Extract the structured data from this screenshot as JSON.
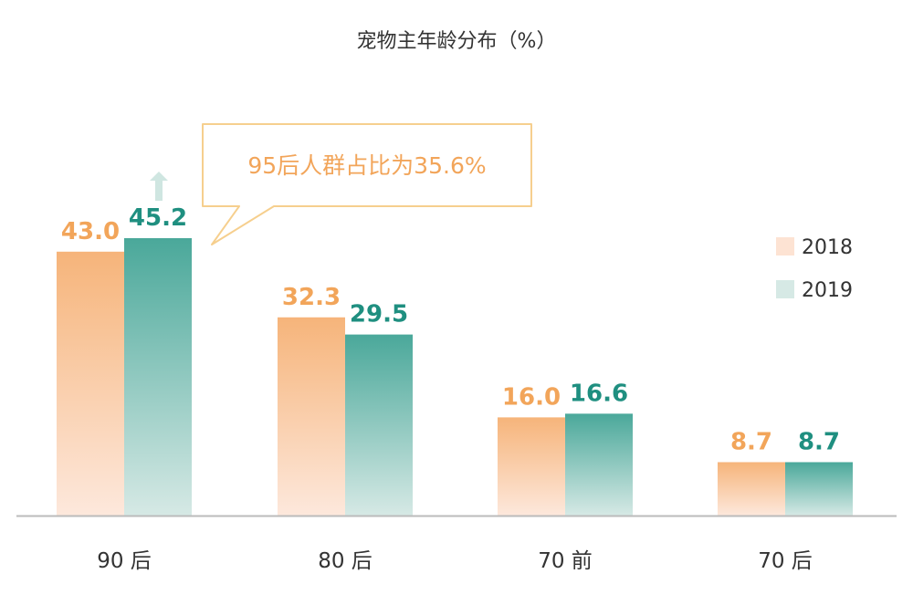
{
  "chart_data": {
    "type": "bar",
    "title": "宠物主年龄分布（%）",
    "categories": [
      "90 后",
      "80 后",
      "70 前",
      "70 后"
    ],
    "series": [
      {
        "name": "2018",
        "values": [
          43.0,
          32.3,
          16.0,
          8.7
        ]
      },
      {
        "name": "2019",
        "values": [
          45.2,
          29.5,
          16.6,
          8.7
        ]
      }
    ],
    "value_labels": [
      [
        "43.0",
        "32.3",
        "16.0",
        "8.7"
      ],
      [
        "45.2",
        "29.5",
        "16.6",
        "8.7"
      ]
    ],
    "ylim": [
      0,
      45.2
    ],
    "xlabel": "",
    "ylabel": "",
    "grid": false,
    "legend_position": "right",
    "annotation": "95后人群占比为35.6%",
    "colors": {
      "series_2018_label": "#f2a55a",
      "series_2018_top": "#f6b47a",
      "series_2018_bottom": "#fde8dc",
      "series_2019_label": "#1f8f80",
      "series_2019_top": "#4aa89a",
      "series_2019_bottom": "#d6e9e5",
      "axis": "#bbbbbb",
      "callout_border": "#f6cf8e",
      "arrow": "#cfe6e1"
    },
    "icons": {
      "arrow": "up-arrow-icon"
    }
  }
}
